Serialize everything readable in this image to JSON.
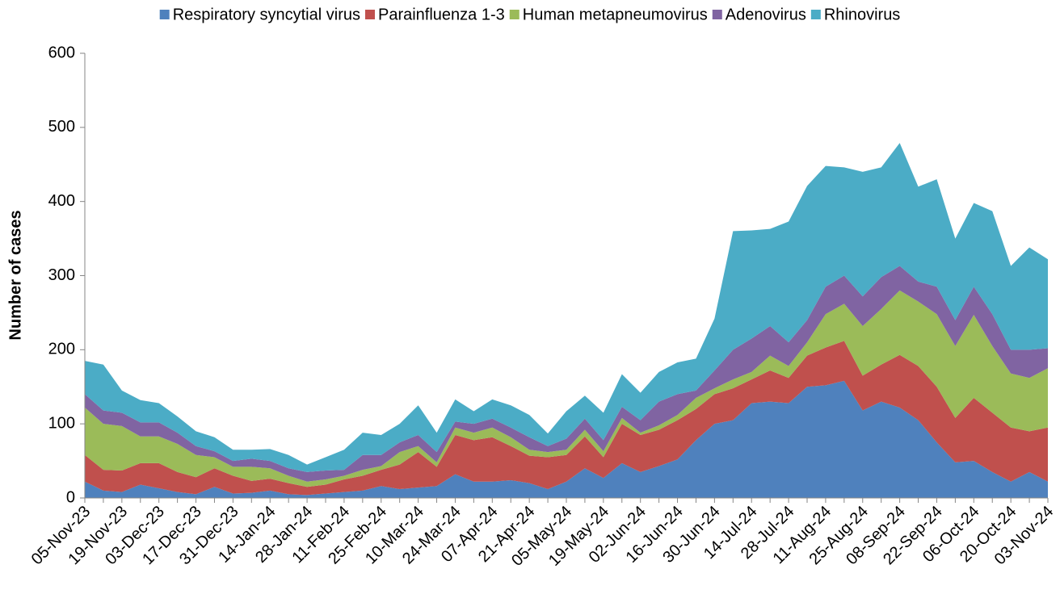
{
  "chart_data": {
    "type": "stacked-area",
    "ylabel": "Number of cases",
    "categories": [
      "05-Nov-23",
      null,
      "19-Nov-23",
      null,
      "03-Dec-23",
      null,
      "17-Dec-23",
      null,
      "31-Dec-23",
      null,
      "14-Jan-24",
      null,
      "28-Jan-24",
      null,
      "11-Feb-24",
      null,
      "25-Feb-24",
      null,
      "10-Mar-24",
      null,
      "24-Mar-24",
      null,
      "07-Apr-24",
      null,
      "21-Apr-24",
      null,
      "05-May-24",
      null,
      "19-May-24",
      null,
      "02-Jun-24",
      null,
      "16-Jun-24",
      null,
      "30-Jun-24",
      null,
      "14-Jul-24",
      null,
      "28-Jul-24",
      null,
      "11-Aug-24",
      null,
      "25-Aug-24",
      null,
      "08-Sep-24",
      null,
      "22-Sep-24",
      null,
      "06-Oct-24",
      null,
      "20-Oct-24",
      null,
      "03-Nov-24"
    ],
    "series": [
      {
        "name": "Respiratory syncytial virus",
        "color": "#4f81bd",
        "values": [
          22,
          10,
          8,
          18,
          13,
          8,
          5,
          15,
          6,
          7,
          10,
          5,
          4,
          6,
          8,
          10,
          16,
          12,
          14,
          16,
          32,
          22,
          22,
          24,
          20,
          12,
          22,
          40,
          27,
          47,
          35,
          43,
          52,
          78,
          100,
          105,
          128,
          130,
          128,
          150,
          152,
          158,
          118,
          130,
          122,
          105,
          75,
          48,
          50,
          35,
          22,
          35,
          22
        ]
      },
      {
        "name": "Parainfluenza 1-3",
        "color": "#c0504d",
        "values": [
          36,
          28,
          29,
          29,
          34,
          27,
          23,
          25,
          24,
          16,
          16,
          15,
          11,
          12,
          17,
          20,
          22,
          33,
          48,
          26,
          53,
          56,
          60,
          46,
          37,
          43,
          36,
          43,
          28,
          53,
          50,
          49,
          53,
          42,
          40,
          43,
          32,
          42,
          34,
          42,
          51,
          54,
          47,
          50,
          71,
          73,
          75,
          60,
          85,
          80,
          73,
          55,
          73
        ]
      },
      {
        "name": "Human metapneumovirus",
        "color": "#9bbb59",
        "values": [
          64,
          62,
          60,
          36,
          36,
          38,
          30,
          15,
          12,
          19,
          14,
          10,
          7,
          7,
          5,
          8,
          5,
          17,
          8,
          6,
          10,
          10,
          13,
          12,
          8,
          7,
          7,
          9,
          8,
          8,
          3,
          6,
          7,
          15,
          8,
          12,
          10,
          20,
          16,
          18,
          45,
          50,
          67,
          75,
          87,
          87,
          98,
          97,
          112,
          90,
          73,
          72,
          80
        ]
      },
      {
        "name": "Adenovirus",
        "color": "#8064a2",
        "values": [
          18,
          18,
          18,
          19,
          19,
          15,
          12,
          8,
          8,
          11,
          10,
          10,
          13,
          12,
          8,
          20,
          15,
          13,
          15,
          14,
          8,
          12,
          12,
          13,
          17,
          8,
          15,
          15,
          15,
          15,
          17,
          32,
          28,
          10,
          24,
          40,
          45,
          40,
          32,
          30,
          37,
          38,
          40,
          43,
          33,
          27,
          37,
          35,
          38,
          43,
          32,
          38,
          27
        ]
      },
      {
        "name": "Rhinovirus",
        "color": "#4bacc6",
        "values": [
          45,
          62,
          30,
          30,
          26,
          22,
          20,
          19,
          15,
          12,
          16,
          18,
          10,
          18,
          27,
          30,
          27,
          25,
          40,
          26,
          30,
          17,
          26,
          30,
          30,
          17,
          37,
          31,
          37,
          44,
          37,
          40,
          43,
          43,
          70,
          160,
          146,
          131,
          163,
          181,
          163,
          146,
          168,
          148,
          166,
          128,
          145,
          110,
          113,
          139,
          113,
          138,
          120
        ]
      }
    ],
    "ylim": [
      0,
      600
    ],
    "yticks": [
      0,
      100,
      200,
      300,
      400,
      500,
      600
    ],
    "legend": "top"
  }
}
